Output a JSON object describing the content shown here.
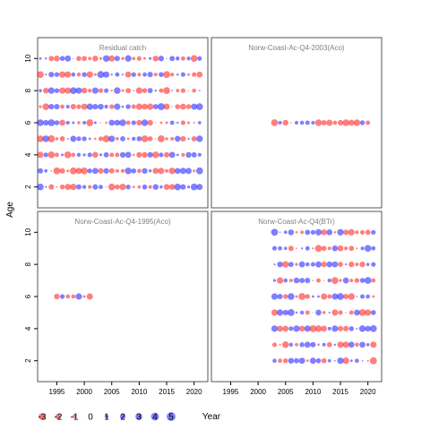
{
  "colors": {
    "negative": "#ff0000",
    "positive": "#0000ff",
    "frame": "#555555",
    "title": "#808080"
  },
  "chart_data": {
    "type": "scatter",
    "subtype": "bubble residual plot",
    "xlabel": "Year",
    "ylabel": "Age",
    "xlim": [
      1991.5,
      2022.5
    ],
    "ylim": [
      0.7,
      11.3
    ],
    "x_ticks": [
      1995,
      2000,
      2005,
      2010,
      2015,
      2020
    ],
    "x_tick_labels": [
      "1995",
      "2000",
      "2005",
      "2010",
      "2015",
      "2020"
    ],
    "y_ticks": [
      2,
      4,
      6,
      8,
      10
    ],
    "y_tick_labels": [
      "2",
      "4",
      "6",
      "8",
      "10"
    ],
    "grid": false,
    "legend": {
      "position": "bottom-left",
      "values": [
        -3,
        -2,
        -1,
        0,
        1,
        2,
        3,
        4,
        5
      ],
      "labels": [
        "-3",
        "-2",
        "-1",
        "0",
        "1",
        "2",
        "3",
        "4",
        "5"
      ]
    },
    "panels": [
      {
        "title": "Residual catch",
        "years": [
          1992,
          2021
        ],
        "ages": [
          2,
          3,
          4,
          5,
          6,
          7,
          8,
          9,
          10
        ]
      },
      {
        "title": "Norw-Coast-Ac-Q4-2003(Aco)",
        "years": [
          2003,
          2020
        ],
        "ages": [
          6
        ]
      },
      {
        "title": "Norw-Coast-Ac-Q4-1995(Aco)",
        "years": [
          1995,
          2001
        ],
        "ages": [
          6
        ]
      },
      {
        "title": "Norw-Coast-Ac-Q4(BTr)",
        "years": [
          2003,
          2021
        ],
        "ages": [
          2,
          3,
          4,
          5,
          6,
          7,
          8,
          9,
          10
        ]
      }
    ]
  }
}
